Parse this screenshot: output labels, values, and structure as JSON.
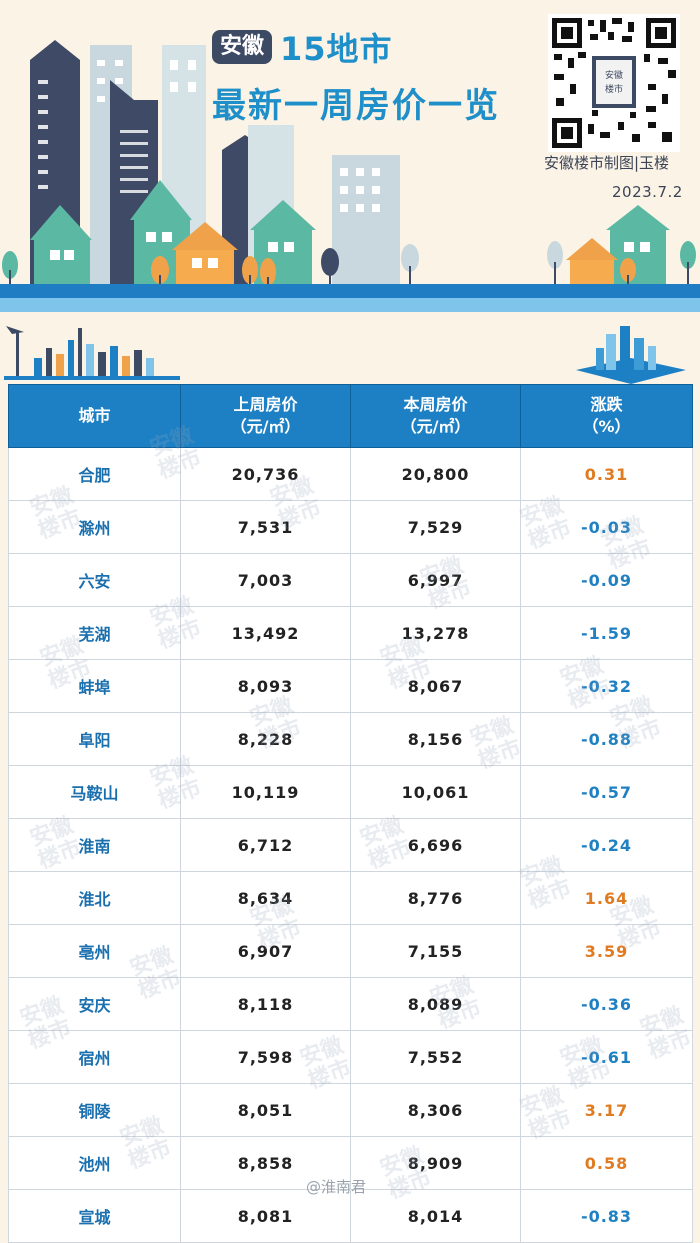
{
  "header": {
    "badge": "安徽",
    "title_line1": "15地市",
    "title_line2": "最新一周房价一览",
    "credit": "安徽楼市制图|玉楼",
    "date": "2023.7.2",
    "qr_label": "安徽楼市"
  },
  "table": {
    "headers": {
      "city": "城市",
      "last_week_l1": "上周房价",
      "last_week_l2": "（元/㎡）",
      "this_week_l1": "本周房价",
      "this_week_l2": "（元/㎡）",
      "change_l1": "涨跌",
      "change_l2": "（%）"
    },
    "rows": [
      {
        "city": "合肥",
        "last": "20,736",
        "this": "20,800",
        "change": "0.31",
        "dir": "up"
      },
      {
        "city": "滁州",
        "last": "7,531",
        "this": "7,529",
        "change": "-0.03",
        "dir": "down"
      },
      {
        "city": "六安",
        "last": "7,003",
        "this": "6,997",
        "change": "-0.09",
        "dir": "down"
      },
      {
        "city": "芜湖",
        "last": "13,492",
        "this": "13,278",
        "change": "-1.59",
        "dir": "down"
      },
      {
        "city": "蚌埠",
        "last": "8,093",
        "this": "8,067",
        "change": "-0.32",
        "dir": "down"
      },
      {
        "city": "阜阳",
        "last": "8,228",
        "this": "8,156",
        "change": "-0.88",
        "dir": "down"
      },
      {
        "city": "马鞍山",
        "last": "10,119",
        "this": "10,061",
        "change": "-0.57",
        "dir": "down"
      },
      {
        "city": "淮南",
        "last": "6,712",
        "this": "6,696",
        "change": "-0.24",
        "dir": "down"
      },
      {
        "city": "淮北",
        "last": "8,634",
        "this": "8,776",
        "change": "1.64",
        "dir": "up"
      },
      {
        "city": "亳州",
        "last": "6,907",
        "this": "7,155",
        "change": "3.59",
        "dir": "up"
      },
      {
        "city": "安庆",
        "last": "8,118",
        "this": "8,089",
        "change": "-0.36",
        "dir": "down"
      },
      {
        "city": "宿州",
        "last": "7,598",
        "this": "7,552",
        "change": "-0.61",
        "dir": "down"
      },
      {
        "city": "铜陵",
        "last": "8,051",
        "this": "8,306",
        "change": "3.17",
        "dir": "up"
      },
      {
        "city": "池州",
        "last": "8,858",
        "this": "8,909",
        "change": "0.58",
        "dir": "up"
      },
      {
        "city": "宣城",
        "last": "8,081",
        "this": "8,014",
        "change": "-0.83",
        "dir": "down"
      }
    ]
  },
  "watermark": "安徽楼市",
  "footer_watermark": "@淮南君",
  "colors": {
    "header_blue": "#1e80c4",
    "up": "#e07b22",
    "down": "#1f80c2",
    "background": "#fbf3e6"
  }
}
